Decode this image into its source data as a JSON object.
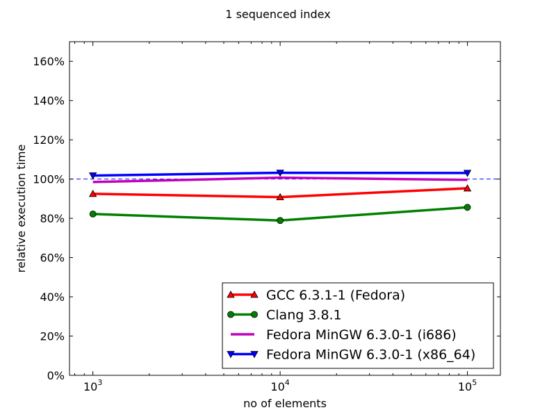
{
  "chart_data": {
    "type": "line",
    "title": "1 sequenced index",
    "xlabel": "no of elements",
    "ylabel": "relative execution time",
    "x_scale": "log",
    "x": [
      1000,
      10000,
      100000
    ],
    "xlim": [
      750,
      150000
    ],
    "ylim": [
      0,
      170
    ],
    "x_ticks": [
      {
        "value": 1000,
        "base": "10",
        "exp": "3"
      },
      {
        "value": 10000,
        "base": "10",
        "exp": "4"
      },
      {
        "value": 100000,
        "base": "10",
        "exp": "5"
      }
    ],
    "y_ticks": [
      0,
      20,
      40,
      60,
      80,
      100,
      120,
      140,
      160
    ],
    "y_tick_labels": [
      "0%",
      "20%",
      "40%",
      "60%",
      "80%",
      "100%",
      "120%",
      "140%",
      "160%"
    ],
    "reference_line": {
      "value": 100,
      "color": "#0000ff",
      "style": "dashed"
    },
    "grid": false,
    "legend_position": "lower-right",
    "series": [
      {
        "name": "GCC 6.3.1-1 (Fedora)",
        "color": "#ff0000",
        "marker": "triangle-up",
        "values": [
          92.5,
          90.8,
          95.3
        ]
      },
      {
        "name": "Clang 3.8.1",
        "color": "#008000",
        "marker": "circle",
        "values": [
          82.2,
          78.9,
          85.6
        ]
      },
      {
        "name": "Fedora MinGW 6.3.0-1 (i686)",
        "color": "#bf00bf",
        "marker": "none",
        "values": [
          98.5,
          100.7,
          99.6
        ]
      },
      {
        "name": "Fedora MinGW 6.3.0-1 (x86_64)",
        "color": "#0000ff",
        "marker": "triangle-down",
        "values": [
          101.8,
          103.2,
          103.1
        ]
      }
    ]
  }
}
